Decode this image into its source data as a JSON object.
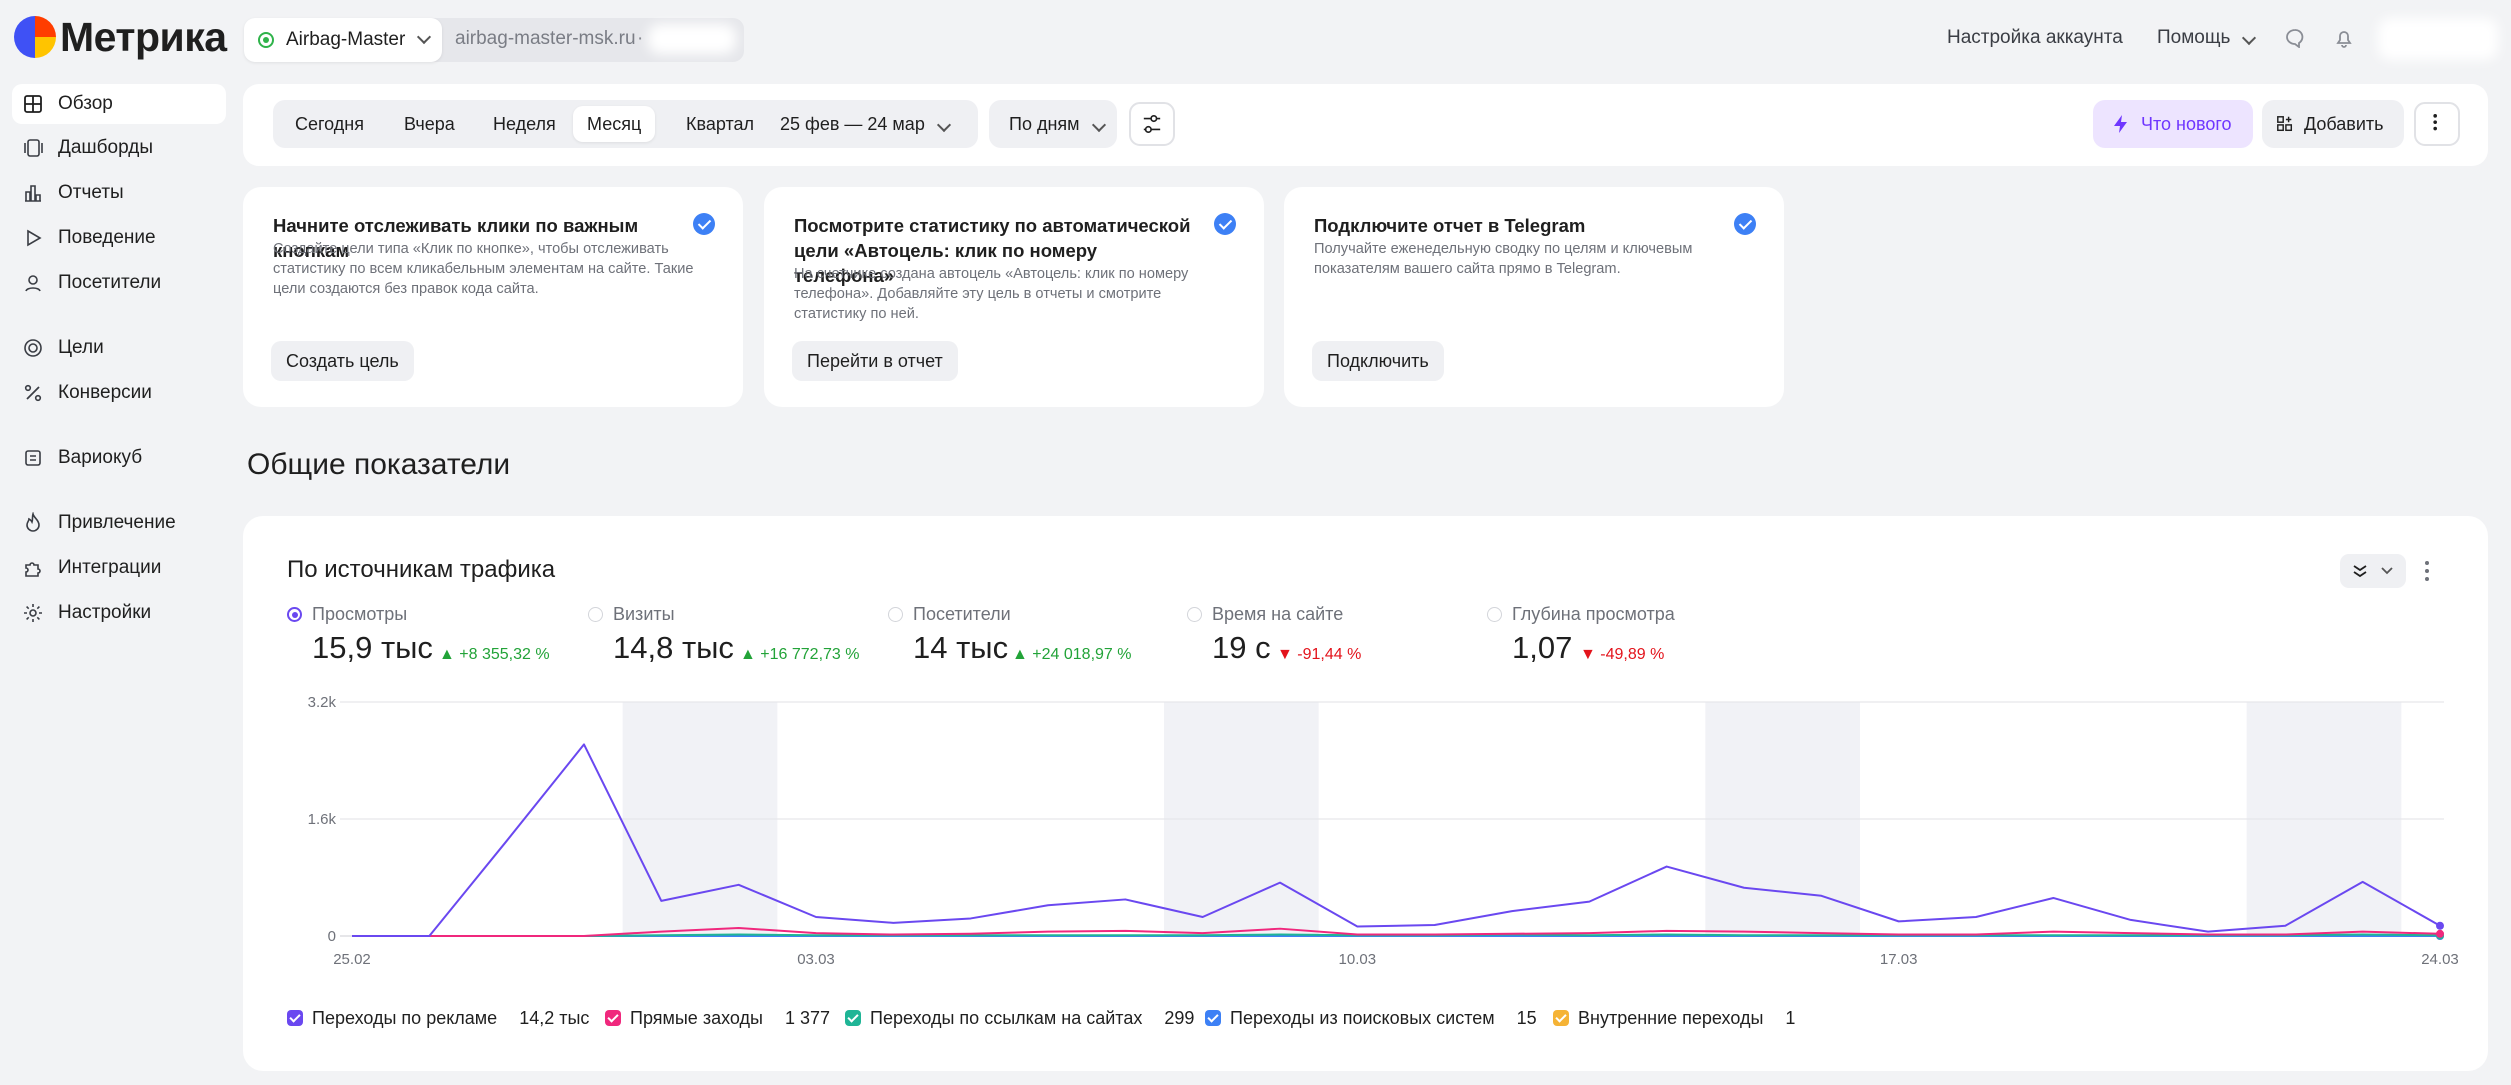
{
  "app": {
    "logo_text": "Метрика"
  },
  "header": {
    "counter_name": "Airbag-Master",
    "counter_site": "airbag-master-msk.ru",
    "counter_id_prefix": "·",
    "account_settings": "Настройка аккаунта",
    "help": "Помощь"
  },
  "sidebar": {
    "items": [
      {
        "label": "Обзор",
        "icon": "grid-icon"
      },
      {
        "label": "Дашборды",
        "icon": "dashboards-icon"
      },
      {
        "label": "Отчеты",
        "icon": "bar-chart-icon"
      },
      {
        "label": "Поведение",
        "icon": "play-icon"
      },
      {
        "label": "Посетители",
        "icon": "user-icon"
      },
      {
        "label": "Цели",
        "icon": "target-icon"
      },
      {
        "label": "Конверсии",
        "icon": "percent-icon"
      },
      {
        "label": "Вариокуб",
        "icon": "cube-icon"
      },
      {
        "label": "Привлечение",
        "icon": "flame-icon"
      },
      {
        "label": "Интеграции",
        "icon": "puzzle-icon"
      },
      {
        "label": "Настройки",
        "icon": "gear-icon"
      }
    ]
  },
  "toolbar": {
    "periods": [
      "Сегодня",
      "Вчера",
      "Неделя",
      "Месяц",
      "Квартал"
    ],
    "active_period": "Месяц",
    "date_range": "25 фев — 24 мар",
    "grouping": "По дням",
    "whats_new": "Что нового",
    "add": "Добавить"
  },
  "cards": [
    {
      "title": "Начните отслеживать клики по важным кнопкам",
      "text": "Создайте цели типа «Клик по кнопке», чтобы отслеживать статистику по всем кликабельным элементам на сайте. Такие цели создаются без правок кода сайта.",
      "button": "Создать цель"
    },
    {
      "title": "Посмотрите статистику по автоматической цели «Автоцель: клик по номеру телефона»",
      "text": "На счетчике создана автоцель «Автоцель: клик по номеру телефона». Добавляйте эту цель в отчеты и смотрите статистику по ней.",
      "button": "Перейти в отчет"
    },
    {
      "title": "Подключите отчет в Telegram",
      "text": "Получайте еженедельную сводку по целям и ключевым показателям вашего сайта прямо в Telegram.",
      "button": "Подключить"
    }
  ],
  "section_title": "Общие показатели",
  "panel": {
    "title": "По источникам трафика",
    "metrics": [
      {
        "name": "Просмотры",
        "value": "15,9 тыс",
        "delta": "▲ +8 355,32 %",
        "trend": "up",
        "selected": true
      },
      {
        "name": "Визиты",
        "value": "14,8 тыс",
        "delta": "▲ +16 772,73 %",
        "trend": "up",
        "selected": false
      },
      {
        "name": "Посетители",
        "value": "14 тыс",
        "delta": "▲ +24 018,97 %",
        "trend": "up",
        "selected": false
      },
      {
        "name": "Время на сайте",
        "value": "19 с",
        "delta": "▼ -91,44 %",
        "trend": "down",
        "selected": false
      },
      {
        "name": "Глубина просмотра",
        "value": "1,07",
        "delta": "▼ -49,89 %",
        "trend": "down",
        "selected": false
      }
    ],
    "legend": [
      {
        "name": "Переходы по рекламе",
        "value": "14,2 тыс",
        "color": "#6a48f0"
      },
      {
        "name": "Прямые заходы",
        "value": "1 377",
        "color": "#f0287d"
      },
      {
        "name": "Переходы по ссылкам на сайтах",
        "value": "299",
        "color": "#1fb596"
      },
      {
        "name": "Переходы из поисковых систем",
        "value": "15",
        "color": "#3d80f5"
      },
      {
        "name": "Внутренние переходы",
        "value": "1",
        "color": "#f5b335"
      }
    ]
  },
  "chart_data": {
    "type": "line",
    "x": [
      "25.02",
      "26.02",
      "27.02",
      "28.02",
      "01.03",
      "02.03",
      "03.03",
      "04.03",
      "05.03",
      "06.03",
      "07.03",
      "08.03",
      "09.03",
      "10.03",
      "11.03",
      "12.03",
      "13.03",
      "14.03",
      "15.03",
      "16.03",
      "17.03",
      "18.03",
      "19.03",
      "20.03",
      "21.03",
      "22.03",
      "23.03",
      "24.03"
    ],
    "x_ticks": [
      "25.02",
      "03.03",
      "10.03",
      "17.03",
      "24.03"
    ],
    "y_ticks": [
      "0",
      "1.6k",
      "3.2k"
    ],
    "ylim": [
      0,
      3200
    ],
    "series": [
      {
        "name": "Переходы по рекламе",
        "color": "#6a48f0",
        "values": [
          0,
          0,
          1300,
          2620,
          480,
          700,
          260,
          180,
          240,
          420,
          500,
          260,
          730,
          130,
          150,
          340,
          470,
          950,
          660,
          550,
          200,
          260,
          520,
          220,
          60,
          140,
          740,
          140
        ]
      },
      {
        "name": "Прямые заходы",
        "color": "#f0287d",
        "values": [
          0,
          0,
          0,
          0,
          60,
          110,
          40,
          20,
          30,
          60,
          70,
          40,
          100,
          20,
          20,
          30,
          40,
          70,
          60,
          40,
          20,
          20,
          60,
          40,
          20,
          20,
          60,
          30
        ]
      },
      {
        "name": "Переходы по ссылкам на сайтах",
        "color": "#1fb596",
        "values": [
          0,
          0,
          0,
          0,
          10,
          20,
          10,
          10,
          10,
          10,
          10,
          10,
          20,
          10,
          10,
          20,
          10,
          20,
          10,
          10,
          10,
          10,
          10,
          10,
          10,
          10,
          20,
          10
        ]
      },
      {
        "name": "Переходы из поисковых систем",
        "color": "#3d80f5",
        "values": [
          0,
          0,
          0,
          0,
          0,
          0,
          0,
          0,
          0,
          0,
          0,
          0,
          0,
          0,
          0,
          0,
          0,
          0,
          0,
          0,
          0,
          0,
          0,
          0,
          0,
          0,
          0,
          0
        ]
      },
      {
        "name": "Внутренние переходы",
        "color": "#f5b335",
        "values": [
          0,
          0,
          0,
          0,
          0,
          0,
          0,
          0,
          0,
          0,
          0,
          0,
          0,
          0,
          0,
          0,
          0,
          0,
          0,
          0,
          0,
          0,
          0,
          0,
          0,
          0,
          0,
          0
        ]
      }
    ],
    "weekend_ranges": [
      [
        "01.03",
        "02.03"
      ],
      [
        "08.03",
        "09.03"
      ],
      [
        "15.03",
        "16.03"
      ],
      [
        "22.03",
        "23.03"
      ]
    ],
    "grid": true,
    "legend_position": "bottom"
  }
}
